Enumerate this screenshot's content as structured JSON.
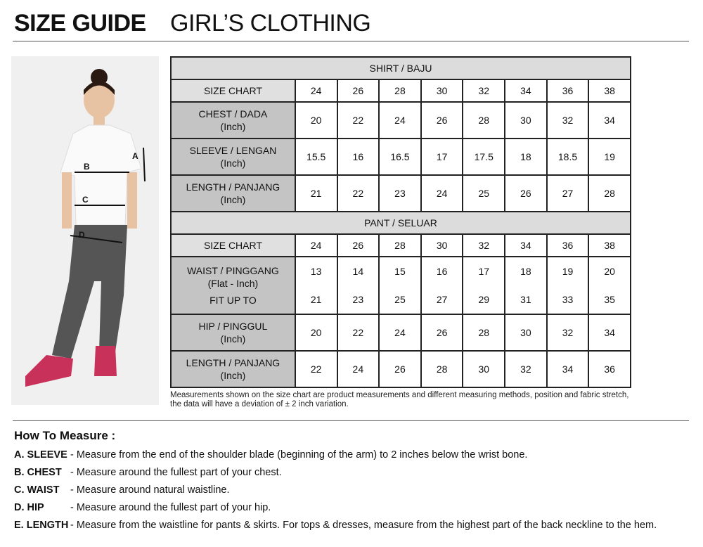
{
  "header": {
    "title": "SIZE GUIDE",
    "subtitle": "GIRL’S CLOTHING"
  },
  "photo": {
    "labels": [
      "A",
      "B",
      "C",
      "D"
    ]
  },
  "shirt": {
    "title": "SHIRT / BAJU",
    "size_label": "SIZE CHART",
    "sizes": [
      "24",
      "26",
      "28",
      "30",
      "32",
      "34",
      "36",
      "38"
    ],
    "rows": [
      {
        "label": "CHEST / DADA",
        "unit": "(Inch)",
        "values": [
          "20",
          "22",
          "24",
          "26",
          "28",
          "30",
          "32",
          "34"
        ]
      },
      {
        "label": "SLEEVE / LENGAN",
        "unit": "(Inch)",
        "values": [
          "15.5",
          "16",
          "16.5",
          "17",
          "17.5",
          "18",
          "18.5",
          "19"
        ]
      },
      {
        "label": "LENGTH / PANJANG",
        "unit": "(Inch)",
        "values": [
          "21",
          "22",
          "23",
          "24",
          "25",
          "26",
          "27",
          "28"
        ]
      }
    ]
  },
  "pant": {
    "title": "PANT / SELUAR",
    "size_label": "SIZE CHART",
    "sizes": [
      "24",
      "26",
      "28",
      "30",
      "32",
      "34",
      "36",
      "38"
    ],
    "waist": {
      "label": "WAIST / PINGGANG",
      "unit": "(Flat - Inch)",
      "values": [
        "13",
        "14",
        "15",
        "16",
        "17",
        "18",
        "19",
        "20"
      ],
      "fit_label": "FIT UP TO",
      "fit_values": [
        "21",
        "23",
        "25",
        "27",
        "29",
        "31",
        "33",
        "35"
      ]
    },
    "rows": [
      {
        "label": "HIP / PINGGUL",
        "unit": "(Inch)",
        "values": [
          "20",
          "22",
          "24",
          "26",
          "28",
          "30",
          "32",
          "34"
        ]
      },
      {
        "label": "LENGTH / PANJANG",
        "unit": "(Inch)",
        "values": [
          "22",
          "24",
          "26",
          "28",
          "30",
          "32",
          "34",
          "36"
        ]
      }
    ]
  },
  "note": "Measurements shown on the size chart are product measurements and different measuring methods, position and fabric stretch, the data will have a deviation of ± 2 inch variation.",
  "how_to": {
    "title": "How To Measure :",
    "items": [
      {
        "key": "A. SLEEVE",
        "text": "- Measure from the end of the shoulder blade (beginning of the arm) to 2 inches below the wrist bone."
      },
      {
        "key": "B. CHEST",
        "text": "- Measure around the fullest part of your chest."
      },
      {
        "key": "C. WAIST",
        "text": "- Measure around natural waistline."
      },
      {
        "key": "D. HIP",
        "text": "- Measure around the fullest part of your hip."
      },
      {
        "key": "E. LENGTH",
        "text": "- Measure from the waistline for pants & skirts. For tops & dresses, measure from the highest part of the back neckline to the hem."
      }
    ]
  }
}
